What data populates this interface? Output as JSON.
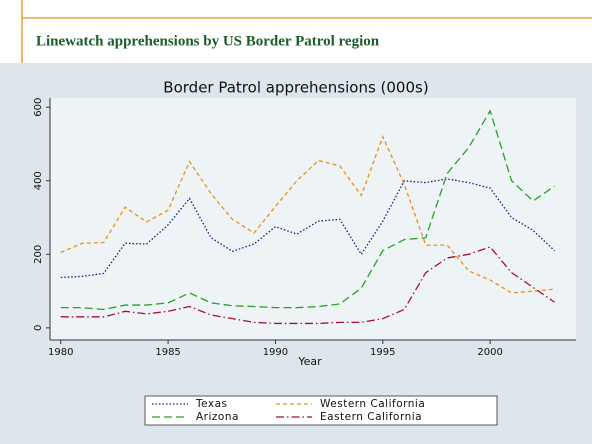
{
  "header": {
    "title": "Linewatch apprehensions by US Border Patrol region"
  },
  "chart_data": {
    "type": "line",
    "title": "Border Patrol apprehensions (000s)",
    "x_label": "Year",
    "x": [
      1980,
      1981,
      1982,
      1983,
      1984,
      1985,
      1986,
      1987,
      1988,
      1989,
      1990,
      1991,
      1992,
      1993,
      1994,
      1995,
      1996,
      1997,
      1998,
      1999,
      2000,
      2001,
      2002,
      2003
    ],
    "series": [
      {
        "name": "Texas",
        "color": "#1a1a80",
        "dash": "dotted",
        "values": [
          137,
          140,
          148,
          230,
          228,
          280,
          352,
          245,
          208,
          228,
          275,
          255,
          290,
          295,
          200,
          290,
          400,
          395,
          405,
          395,
          380,
          300,
          265,
          210
        ]
      },
      {
        "name": "Western California",
        "color": "#e8901a",
        "dash": "dashed",
        "values": [
          205,
          230,
          232,
          328,
          288,
          320,
          452,
          365,
          295,
          258,
          330,
          400,
          455,
          440,
          360,
          520,
          390,
          225,
          225,
          155,
          130,
          95,
          100,
          105
        ]
      },
      {
        "name": "Arizona",
        "color": "#2aa02a",
        "dash": "longdash",
        "values": [
          55,
          55,
          50,
          62,
          62,
          68,
          95,
          68,
          60,
          58,
          55,
          55,
          58,
          65,
          108,
          210,
          240,
          245,
          420,
          490,
          590,
          400,
          345,
          385
        ]
      },
      {
        "name": "Eastern California",
        "color": "#a01040",
        "dash": "dashdot",
        "values": [
          30,
          30,
          30,
          45,
          38,
          45,
          58,
          35,
          25,
          15,
          12,
          12,
          12,
          15,
          15,
          25,
          50,
          150,
          190,
          200,
          220,
          150,
          110,
          70
        ]
      }
    ],
    "xlim": [
      1979.5,
      2004
    ],
    "xticks": [
      1980,
      1985,
      1990,
      1995,
      2000
    ],
    "ylim": [
      -33,
      625
    ],
    "yticks": [
      0,
      200,
      400,
      600
    ]
  }
}
